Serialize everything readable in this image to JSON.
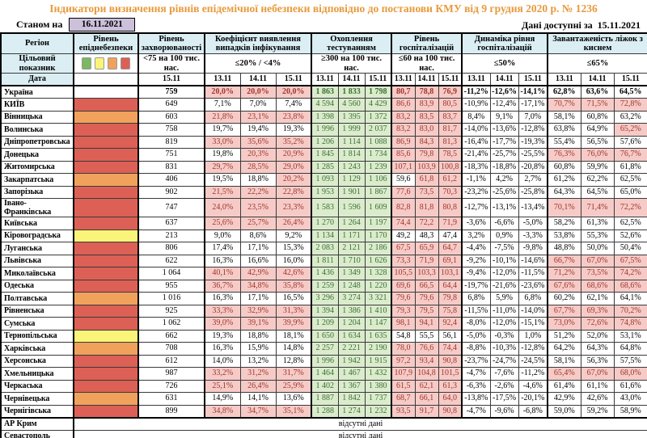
{
  "title": "Індикатори визначення рівнів епідемічної небезпеки відповідно до постанови КМУ від 9 грудня 2020 р. № 1236",
  "as_of": {
    "label": "Станом на",
    "date": "16.11.2021"
  },
  "available": {
    "label": "Дані доступні за",
    "date": "15.11.2021"
  },
  "no_data_label": "відсутні дані",
  "colors": {
    "title": "#E79A3C",
    "header_bg": "#DAEEF3",
    "date_box_bg": "#CCC0DA",
    "pink_bg": "#F6CBC7",
    "pink_text": "#A0352B",
    "green_bg": "#DBECCD",
    "green_text": "#3C6E33",
    "level_red": "#DC6055",
    "level_orange": "#F0A25C",
    "level_yellow": "#FAF478",
    "level_green": "#7CB861"
  },
  "legend_colors": [
    "#7CB861",
    "#FAF478",
    "#F0A25C",
    "#DC6055"
  ],
  "header": {
    "region": "Регіон",
    "target_label": "Цільовий показник",
    "date_label": "Дата",
    "groups": [
      {
        "name": "Рівень епіднебезпеки",
        "target": "",
        "dates": []
      },
      {
        "name": "Рівень захворюваності",
        "target": "<75 на 100 тис. нас.",
        "dates": [
          "15.11"
        ]
      },
      {
        "name": "Коефіцієнт виявлення випадків інфікування",
        "target": "≤20% / <4%",
        "dates": [
          "13.11",
          "14.11",
          "15.11"
        ]
      },
      {
        "name": "Охоплення тестуванням",
        "target": "≥300 на 100 тис. нас.",
        "dates": [
          "13.11",
          "14.11",
          "15.11"
        ]
      },
      {
        "name": "Рівень госпіталізацій",
        "target": "≤60 на 100 тис. нас.",
        "dates": [
          "13.11",
          "14.11",
          "15.11"
        ]
      },
      {
        "name": "Динаміка рівня госпіталізацій",
        "target": "≤50%",
        "dates": [
          "13.11",
          "14.11",
          "15.11"
        ]
      },
      {
        "name": "Завантаженість ліжок з киснем",
        "target": "≤65%",
        "dates": [
          "13.11",
          "14.11",
          "15.11"
        ]
      }
    ]
  },
  "rows": [
    {
      "name": "Україна",
      "bold": true,
      "level": "none",
      "inc": "759",
      "det": [
        "20,0%",
        "20,0%",
        "20,0%"
      ],
      "detHi": [
        1,
        1,
        1
      ],
      "test": [
        "1 863",
        "1 833",
        "1 798"
      ],
      "hosp": [
        "80,7",
        "78,8",
        "76,9"
      ],
      "hospHi": [
        1,
        1,
        1
      ],
      "dyn": [
        "-11,2%",
        "-12,6%",
        "-14,1%"
      ],
      "beds": [
        "62,8%",
        "63,6%",
        "64,5%"
      ],
      "bedsHi": [
        0,
        0,
        0
      ]
    },
    {
      "name": "КИЇВ",
      "level": "red",
      "inc": "649",
      "det": [
        "7,1%",
        "7,0%",
        "7,4%"
      ],
      "detHi": [
        0,
        0,
        0
      ],
      "test": [
        "4 594",
        "4 560",
        "4 429"
      ],
      "hosp": [
        "86,6",
        "83,9",
        "80,5"
      ],
      "hospHi": [
        1,
        1,
        1
      ],
      "dyn": [
        "-10,9%",
        "-12,4%",
        "-17,1%"
      ],
      "beds": [
        "70,7%",
        "71,5%",
        "72,8%"
      ],
      "bedsHi": [
        1,
        1,
        1
      ]
    },
    {
      "name": "Вінницька",
      "level": "orange",
      "inc": "603",
      "det": [
        "21,8%",
        "23,1%",
        "23,8%"
      ],
      "detHi": [
        1,
        1,
        1
      ],
      "test": [
        "1 398",
        "1 395",
        "1 372"
      ],
      "hosp": [
        "83,2",
        "83,5",
        "83,7"
      ],
      "hospHi": [
        1,
        1,
        1
      ],
      "dyn": [
        "8,4%",
        "9,1%",
        "7,0%"
      ],
      "beds": [
        "58,1%",
        "60,8%",
        "63,2%"
      ],
      "bedsHi": [
        0,
        0,
        0
      ]
    },
    {
      "name": "Волинська",
      "level": "red",
      "inc": "758",
      "det": [
        "19,7%",
        "19,4%",
        "19,3%"
      ],
      "detHi": [
        0,
        0,
        0
      ],
      "test": [
        "1 996",
        "1 999",
        "2 037"
      ],
      "hosp": [
        "83,2",
        "83,0",
        "81,7"
      ],
      "hospHi": [
        1,
        1,
        1
      ],
      "dyn": [
        "-14,0%",
        "-13,6%",
        "-12,8%"
      ],
      "beds": [
        "63,8%",
        "64,9%",
        "65,2%"
      ],
      "bedsHi": [
        0,
        0,
        1
      ]
    },
    {
      "name": "Дніпропетровська",
      "level": "red",
      "inc": "819",
      "det": [
        "33,0%",
        "35,6%",
        "35,2%"
      ],
      "detHi": [
        1,
        1,
        1
      ],
      "test": [
        "1 206",
        "1 114",
        "1 088"
      ],
      "hosp": [
        "86,9",
        "84,3",
        "81,3"
      ],
      "hospHi": [
        1,
        1,
        1
      ],
      "dyn": [
        "-16,4%",
        "-17,7%",
        "-19,3%"
      ],
      "beds": [
        "55,4%",
        "56,5%",
        "57,6%"
      ],
      "bedsHi": [
        0,
        0,
        0
      ]
    },
    {
      "name": "Донецька",
      "level": "red",
      "inc": "751",
      "det": [
        "19,8%",
        "20,3%",
        "20,9%"
      ],
      "detHi": [
        0,
        1,
        1
      ],
      "test": [
        "1 845",
        "1 814",
        "1 734"
      ],
      "hosp": [
        "85,6",
        "79,8",
        "78,5"
      ],
      "hospHi": [
        1,
        1,
        1
      ],
      "dyn": [
        "-21,4%",
        "-25,7%",
        "-25,5%"
      ],
      "beds": [
        "76,3%",
        "76,0%",
        "76,7%"
      ],
      "bedsHi": [
        1,
        1,
        1
      ]
    },
    {
      "name": "Житомирська",
      "level": "red",
      "inc": "831",
      "det": [
        "29,7%",
        "28,5%",
        "29,0%"
      ],
      "detHi": [
        1,
        1,
        1
      ],
      "test": [
        "1 285",
        "1 243",
        "1 239"
      ],
      "hosp": [
        "107,1",
        "103,9",
        "100,8"
      ],
      "hospHi": [
        1,
        1,
        1
      ],
      "dyn": [
        "-18,3%",
        "-18,8%",
        "-20,8%"
      ],
      "beds": [
        "60,8%",
        "59,9%",
        "61,8%"
      ],
      "bedsHi": [
        0,
        0,
        0
      ]
    },
    {
      "name": "Закарпатська",
      "level": "orange",
      "inc": "406",
      "det": [
        "19,5%",
        "18,8%",
        "20,2%"
      ],
      "detHi": [
        0,
        0,
        1
      ],
      "test": [
        "1 093",
        "1 129",
        "1 106"
      ],
      "hosp": [
        "59,6",
        "61,8",
        "61,2"
      ],
      "hospHi": [
        0,
        1,
        1
      ],
      "dyn": [
        "-1,1%",
        "4,2%",
        "2,7%"
      ],
      "beds": [
        "61,2%",
        "62,2%",
        "62,5%"
      ],
      "bedsHi": [
        0,
        0,
        0
      ]
    },
    {
      "name": "Запорізька",
      "level": "red",
      "inc": "902",
      "det": [
        "21,5%",
        "22,2%",
        "22,8%"
      ],
      "detHi": [
        1,
        1,
        1
      ],
      "test": [
        "1 953",
        "1 901",
        "1 867"
      ],
      "hosp": [
        "77,6",
        "73,5",
        "70,3"
      ],
      "hospHi": [
        1,
        1,
        1
      ],
      "dyn": [
        "-23,2%",
        "-25,6%",
        "-25,8%"
      ],
      "beds": [
        "64,3%",
        "64,5%",
        "65,0%"
      ],
      "bedsHi": [
        0,
        0,
        0
      ]
    },
    {
      "name": "Івано-\nФранківська",
      "level": "red",
      "inc": "747",
      "det": [
        "24,0%",
        "23,5%",
        "23,3%"
      ],
      "detHi": [
        1,
        1,
        1
      ],
      "test": [
        "1 583",
        "1 596",
        "1 609"
      ],
      "hosp": [
        "82,8",
        "81,8",
        "80,8"
      ],
      "hospHi": [
        1,
        1,
        1
      ],
      "dyn": [
        "-12,7%",
        "-13,1%",
        "-13,4%"
      ],
      "beds": [
        "70,1%",
        "71,4%",
        "72,2%"
      ],
      "bedsHi": [
        1,
        1,
        1
      ]
    },
    {
      "name": "Київська",
      "level": "red",
      "inc": "637",
      "det": [
        "25,6%",
        "25,7%",
        "26,4%"
      ],
      "detHi": [
        1,
        1,
        1
      ],
      "test": [
        "1 270",
        "1 264",
        "1 197"
      ],
      "hosp": [
        "74,4",
        "72,2",
        "71,9"
      ],
      "hospHi": [
        1,
        1,
        1
      ],
      "dyn": [
        "-3,6%",
        "-6,6%",
        "-5,0%"
      ],
      "beds": [
        "58,2%",
        "61,3%",
        "62,5%"
      ],
      "bedsHi": [
        0,
        0,
        0
      ]
    },
    {
      "name": "Кіровоградська",
      "level": "yellow",
      "inc": "213",
      "det": [
        "9,0%",
        "8,6%",
        "9,2%"
      ],
      "detHi": [
        0,
        0,
        0
      ],
      "test": [
        "1 134",
        "1 171",
        "1 170"
      ],
      "hosp": [
        "49,2",
        "48,3",
        "47,4"
      ],
      "hospHi": [
        0,
        0,
        0
      ],
      "dyn": [
        "3,2%",
        "0,9%",
        "-3,3%"
      ],
      "beds": [
        "53,8%",
        "55,3%",
        "52,6%"
      ],
      "bedsHi": [
        0,
        0,
        0
      ]
    },
    {
      "name": "Луганська",
      "level": "red",
      "inc": "806",
      "det": [
        "17,4%",
        "17,1%",
        "15,3%"
      ],
      "detHi": [
        0,
        0,
        0
      ],
      "test": [
        "2 083",
        "2 121",
        "2 186"
      ],
      "hosp": [
        "67,5",
        "65,9",
        "64,7"
      ],
      "hospHi": [
        1,
        1,
        1
      ],
      "dyn": [
        "-4,4%",
        "-7,5%",
        "-9,8%"
      ],
      "beds": [
        "48,8%",
        "50,0%",
        "50,4%"
      ],
      "bedsHi": [
        0,
        0,
        0
      ]
    },
    {
      "name": "Львівська",
      "level": "red",
      "inc": "622",
      "det": [
        "16,3%",
        "16,6%",
        "16,0%"
      ],
      "detHi": [
        0,
        0,
        0
      ],
      "test": [
        "1 811",
        "1 710",
        "1 626"
      ],
      "hosp": [
        "73,3",
        "71,9",
        "69,1"
      ],
      "hospHi": [
        1,
        1,
        1
      ],
      "dyn": [
        "-9,2%",
        "-10,1%",
        "-14,6%"
      ],
      "beds": [
        "66,7%",
        "67,0%",
        "67,5%"
      ],
      "bedsHi": [
        1,
        1,
        1
      ]
    },
    {
      "name": "Миколаївська",
      "level": "red",
      "inc": "1 064",
      "det": [
        "40,1%",
        "42,9%",
        "42,6%"
      ],
      "detHi": [
        1,
        1,
        1
      ],
      "test": [
        "1 436",
        "1 349",
        "1 328"
      ],
      "hosp": [
        "105,5",
        "103,3",
        "103,1"
      ],
      "hospHi": [
        1,
        1,
        1
      ],
      "dyn": [
        "-9,4%",
        "-12,0%",
        "-11,5%"
      ],
      "beds": [
        "71,2%",
        "73,5%",
        "74,2%"
      ],
      "bedsHi": [
        1,
        1,
        1
      ]
    },
    {
      "name": "Одеська",
      "level": "red",
      "inc": "955",
      "det": [
        "36,7%",
        "34,8%",
        "35,8%"
      ],
      "detHi": [
        1,
        1,
        1
      ],
      "test": [
        "1 259",
        "1 248",
        "1 220"
      ],
      "hosp": [
        "69,6",
        "66,5",
        "64,4"
      ],
      "hospHi": [
        1,
        1,
        1
      ],
      "dyn": [
        "-19,7%",
        "-21,6%",
        "-23,6%"
      ],
      "beds": [
        "67,6%",
        "68,6%",
        "68,6%"
      ],
      "bedsHi": [
        1,
        1,
        1
      ]
    },
    {
      "name": "Полтавська",
      "level": "orange",
      "inc": "1 016",
      "det": [
        "16,3%",
        "17,1%",
        "16,5%"
      ],
      "detHi": [
        0,
        0,
        0
      ],
      "test": [
        "3 296",
        "3 274",
        "3 321"
      ],
      "hosp": [
        "79,6",
        "79,6",
        "79,8"
      ],
      "hospHi": [
        1,
        1,
        1
      ],
      "dyn": [
        "6,8%",
        "5,9%",
        "6,8%"
      ],
      "beds": [
        "60,2%",
        "62,1%",
        "64,1%"
      ],
      "bedsHi": [
        0,
        0,
        0
      ]
    },
    {
      "name": "Рівненська",
      "level": "red",
      "inc": "925",
      "det": [
        "33,3%",
        "32,9%",
        "31,3%"
      ],
      "detHi": [
        1,
        1,
        1
      ],
      "test": [
        "1 394",
        "1 386",
        "1 410"
      ],
      "hosp": [
        "79,3",
        "79,5",
        "75,8"
      ],
      "hospHi": [
        1,
        1,
        1
      ],
      "dyn": [
        "-11,5%",
        "-11,0%",
        "-14,0%"
      ],
      "beds": [
        "67,7%",
        "69,3%",
        "70,2%"
      ],
      "bedsHi": [
        1,
        1,
        1
      ]
    },
    {
      "name": "Сумська",
      "level": "red",
      "inc": "1 062",
      "det": [
        "39,0%",
        "39,1%",
        "39,9%"
      ],
      "detHi": [
        1,
        1,
        1
      ],
      "test": [
        "1 209",
        "1 204",
        "1 147"
      ],
      "hosp": [
        "98,1",
        "94,1",
        "92,4"
      ],
      "hospHi": [
        1,
        1,
        1
      ],
      "dyn": [
        "-8,0%",
        "-12,0%",
        "-15,1%"
      ],
      "beds": [
        "73,0%",
        "72,6%",
        "74,8%"
      ],
      "bedsHi": [
        1,
        1,
        1
      ]
    },
    {
      "name": "Тернопільська",
      "level": "yellow",
      "inc": "662",
      "det": [
        "19,3%",
        "18,8%",
        "18,1%"
      ],
      "detHi": [
        0,
        0,
        0
      ],
      "test": [
        "1 650",
        "1 634",
        "1 635"
      ],
      "hosp": [
        "54,8",
        "55,5",
        "56,1"
      ],
      "hospHi": [
        0,
        0,
        0
      ],
      "dyn": [
        "-5,0%",
        "-0,3%",
        "1,0%"
      ],
      "beds": [
        "51,2%",
        "52,0%",
        "53,1%"
      ],
      "bedsHi": [
        0,
        0,
        0
      ]
    },
    {
      "name": "Харківська",
      "level": "orange",
      "inc": "708",
      "det": [
        "16,3%",
        "15,9%",
        "14,8%"
      ],
      "detHi": [
        0,
        0,
        0
      ],
      "test": [
        "2 257",
        "2 221",
        "2 190"
      ],
      "hosp": [
        "78,0",
        "76,6",
        "74,4"
      ],
      "hospHi": [
        1,
        1,
        1
      ],
      "dyn": [
        "-8,8%",
        "-10,3%",
        "-12,8%"
      ],
      "beds": [
        "64,2%",
        "64,3%",
        "64,8%"
      ],
      "bedsHi": [
        0,
        0,
        0
      ]
    },
    {
      "name": "Херсонська",
      "level": "red",
      "inc": "612",
      "det": [
        "14,0%",
        "13,2%",
        "12,8%"
      ],
      "detHi": [
        0,
        0,
        0
      ],
      "test": [
        "1 996",
        "1 942",
        "1 915"
      ],
      "hosp": [
        "97,2",
        "93,4",
        "90,8"
      ],
      "hospHi": [
        1,
        1,
        1
      ],
      "dyn": [
        "-23,7%",
        "-24,7%",
        "-24,5%"
      ],
      "beds": [
        "58,1%",
        "56,3%",
        "57,5%"
      ],
      "bedsHi": [
        0,
        0,
        0
      ]
    },
    {
      "name": "Хмельницька",
      "level": "red",
      "inc": "987",
      "det": [
        "33,2%",
        "31,2%",
        "31,7%"
      ],
      "detHi": [
        1,
        1,
        1
      ],
      "test": [
        "1 464",
        "1 467",
        "1 432"
      ],
      "hosp": [
        "107,9",
        "104,8",
        "101,5"
      ],
      "hospHi": [
        1,
        1,
        1
      ],
      "dyn": [
        "-4,7%",
        "-7,6%",
        "-11,2%"
      ],
      "beds": [
        "65,4%",
        "67,0%",
        "68,0%"
      ],
      "bedsHi": [
        1,
        1,
        1
      ]
    },
    {
      "name": "Черкаська",
      "level": "red",
      "inc": "726",
      "det": [
        "25,1%",
        "26,4%",
        "25,9%"
      ],
      "detHi": [
        1,
        1,
        1
      ],
      "test": [
        "1 402",
        "1 367",
        "1 380"
      ],
      "hosp": [
        "61,5",
        "62,1",
        "61,3"
      ],
      "hospHi": [
        1,
        1,
        1
      ],
      "dyn": [
        "-6,3%",
        "-2,6%",
        "-4,6%"
      ],
      "beds": [
        "61,4%",
        "61,1%",
        "61,6%"
      ],
      "bedsHi": [
        0,
        0,
        0
      ]
    },
    {
      "name": "Чернівецька",
      "level": "orange",
      "inc": "631",
      "det": [
        "14,9%",
        "14,1%",
        "13,6%"
      ],
      "detHi": [
        0,
        0,
        0
      ],
      "test": [
        "1 887",
        "1 842",
        "1 737"
      ],
      "hosp": [
        "68,7",
        "66,1",
        "64,0"
      ],
      "hospHi": [
        1,
        1,
        1
      ],
      "dyn": [
        "-13,8%",
        "-17,5%",
        "-20,1%"
      ],
      "beds": [
        "42,9%",
        "42,6%",
        "43,0%"
      ],
      "bedsHi": [
        0,
        0,
        0
      ]
    },
    {
      "name": "Чернігівська",
      "level": "red",
      "inc": "899",
      "det": [
        "34,8%",
        "34,7%",
        "35,1%"
      ],
      "detHi": [
        1,
        1,
        1
      ],
      "test": [
        "1 288",
        "1 274",
        "1 232"
      ],
      "hosp": [
        "93,5",
        "91,7",
        "90,8"
      ],
      "hospHi": [
        1,
        1,
        1
      ],
      "dyn": [
        "-4,7%",
        "-9,6%",
        "-6,8%"
      ],
      "beds": [
        "59,0%",
        "59,2%",
        "58,9%"
      ],
      "bedsHi": [
        0,
        0,
        0
      ]
    },
    {
      "name": "АР Крим",
      "no_data": true,
      "sep": true
    },
    {
      "name": "Севастополь",
      "no_data": true
    }
  ]
}
